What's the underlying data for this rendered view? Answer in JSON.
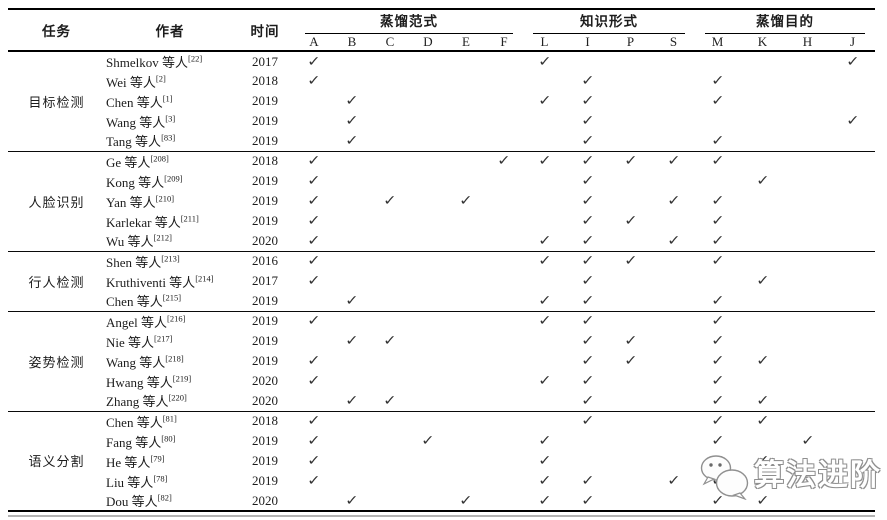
{
  "table": {
    "header": {
      "task": "任务",
      "author": "作者",
      "time": "时间",
      "groups": [
        {
          "label": "蒸馏范式",
          "cols": [
            "A",
            "B",
            "C",
            "D",
            "E",
            "F"
          ]
        },
        {
          "label": "知识形式",
          "cols": [
            "L",
            "I",
            "P",
            "S"
          ]
        },
        {
          "label": "蒸馏目的",
          "cols": [
            "M",
            "K",
            "H",
            "J"
          ]
        }
      ]
    },
    "check_mark": "✓",
    "task_groups": [
      {
        "task": "目标检测",
        "rows": [
          {
            "author": "Shmelkov 等人",
            "ref": "[22]",
            "year": "2017",
            "checks": [
              "A",
              "L",
              "J"
            ]
          },
          {
            "author": "Wei 等人",
            "ref": "[2]",
            "year": "2018",
            "checks": [
              "A",
              "I",
              "M"
            ]
          },
          {
            "author": "Chen 等人",
            "ref": "[1]",
            "year": "2019",
            "checks": [
              "B",
              "L",
              "I",
              "M"
            ]
          },
          {
            "author": "Wang 等人",
            "ref": "[3]",
            "year": "2019",
            "checks": [
              "B",
              "I",
              "J"
            ]
          },
          {
            "author": "Tang 等人",
            "ref": "[83]",
            "year": "2019",
            "checks": [
              "B",
              "I",
              "M"
            ]
          }
        ]
      },
      {
        "task": "人脸识别",
        "rows": [
          {
            "author": "Ge 等人",
            "ref": "[208]",
            "year": "2018",
            "checks": [
              "A",
              "F",
              "L",
              "I",
              "P",
              "S",
              "M"
            ]
          },
          {
            "author": "Kong 等人",
            "ref": "[209]",
            "year": "2019",
            "checks": [
              "A",
              "I",
              "K"
            ]
          },
          {
            "author": "Yan 等人",
            "ref": "[210]",
            "year": "2019",
            "checks": [
              "A",
              "C",
              "E",
              "I",
              "S",
              "M"
            ]
          },
          {
            "author": "Karlekar 等人",
            "ref": "[211]",
            "year": "2019",
            "checks": [
              "A",
              "I",
              "P",
              "M"
            ]
          },
          {
            "author": "Wu 等人",
            "ref": "[212]",
            "year": "2020",
            "checks": [
              "A",
              "L",
              "I",
              "S",
              "M"
            ]
          }
        ]
      },
      {
        "task": "行人检测",
        "rows": [
          {
            "author": "Shen 等人",
            "ref": "[213]",
            "year": "2016",
            "checks": [
              "A",
              "L",
              "I",
              "P",
              "M"
            ]
          },
          {
            "author": "Kruthiventi 等人",
            "ref": "[214]",
            "year": "2017",
            "checks": [
              "A",
              "I",
              "K"
            ]
          },
          {
            "author": "Chen 等人",
            "ref": "[215]",
            "year": "2019",
            "checks": [
              "B",
              "L",
              "I",
              "M"
            ]
          }
        ]
      },
      {
        "task": "姿势检测",
        "rows": [
          {
            "author": "Angel 等人",
            "ref": "[216]",
            "year": "2019",
            "checks": [
              "A",
              "L",
              "I",
              "M"
            ]
          },
          {
            "author": "Nie 等人",
            "ref": "[217]",
            "year": "2019",
            "checks": [
              "B",
              "C",
              "I",
              "P",
              "M"
            ]
          },
          {
            "author": "Wang 等人",
            "ref": "[218]",
            "year": "2019",
            "checks": [
              "A",
              "I",
              "P",
              "M",
              "K"
            ]
          },
          {
            "author": "Hwang 等人",
            "ref": "[219]",
            "year": "2020",
            "checks": [
              "A",
              "L",
              "I",
              "M"
            ]
          },
          {
            "author": "Zhang 等人",
            "ref": "[220]",
            "year": "2020",
            "checks": [
              "B",
              "C",
              "I",
              "M",
              "K"
            ]
          }
        ]
      },
      {
        "task": "语义分割",
        "rows": [
          {
            "author": "Chen 等人",
            "ref": "[81]",
            "year": "2018",
            "checks": [
              "A",
              "I",
              "M",
              "K"
            ]
          },
          {
            "author": "Fang 等人",
            "ref": "[80]",
            "year": "2019",
            "checks": [
              "A",
              "D",
              "L",
              "M",
              "H"
            ]
          },
          {
            "author": "He 等人",
            "ref": "[79]",
            "year": "2019",
            "checks": [
              "A",
              "L",
              "M",
              "K"
            ]
          },
          {
            "author": "Liu 等人",
            "ref": "[78]",
            "year": "2019",
            "checks": [
              "A",
              "L",
              "I",
              "S",
              "M",
              "K"
            ]
          },
          {
            "author": "Dou 等人",
            "ref": "[82]",
            "year": "2020",
            "checks": [
              "B",
              "E",
              "L",
              "I",
              "M",
              "K"
            ]
          }
        ]
      }
    ]
  },
  "watermark": {
    "text": "算法进阶"
  }
}
